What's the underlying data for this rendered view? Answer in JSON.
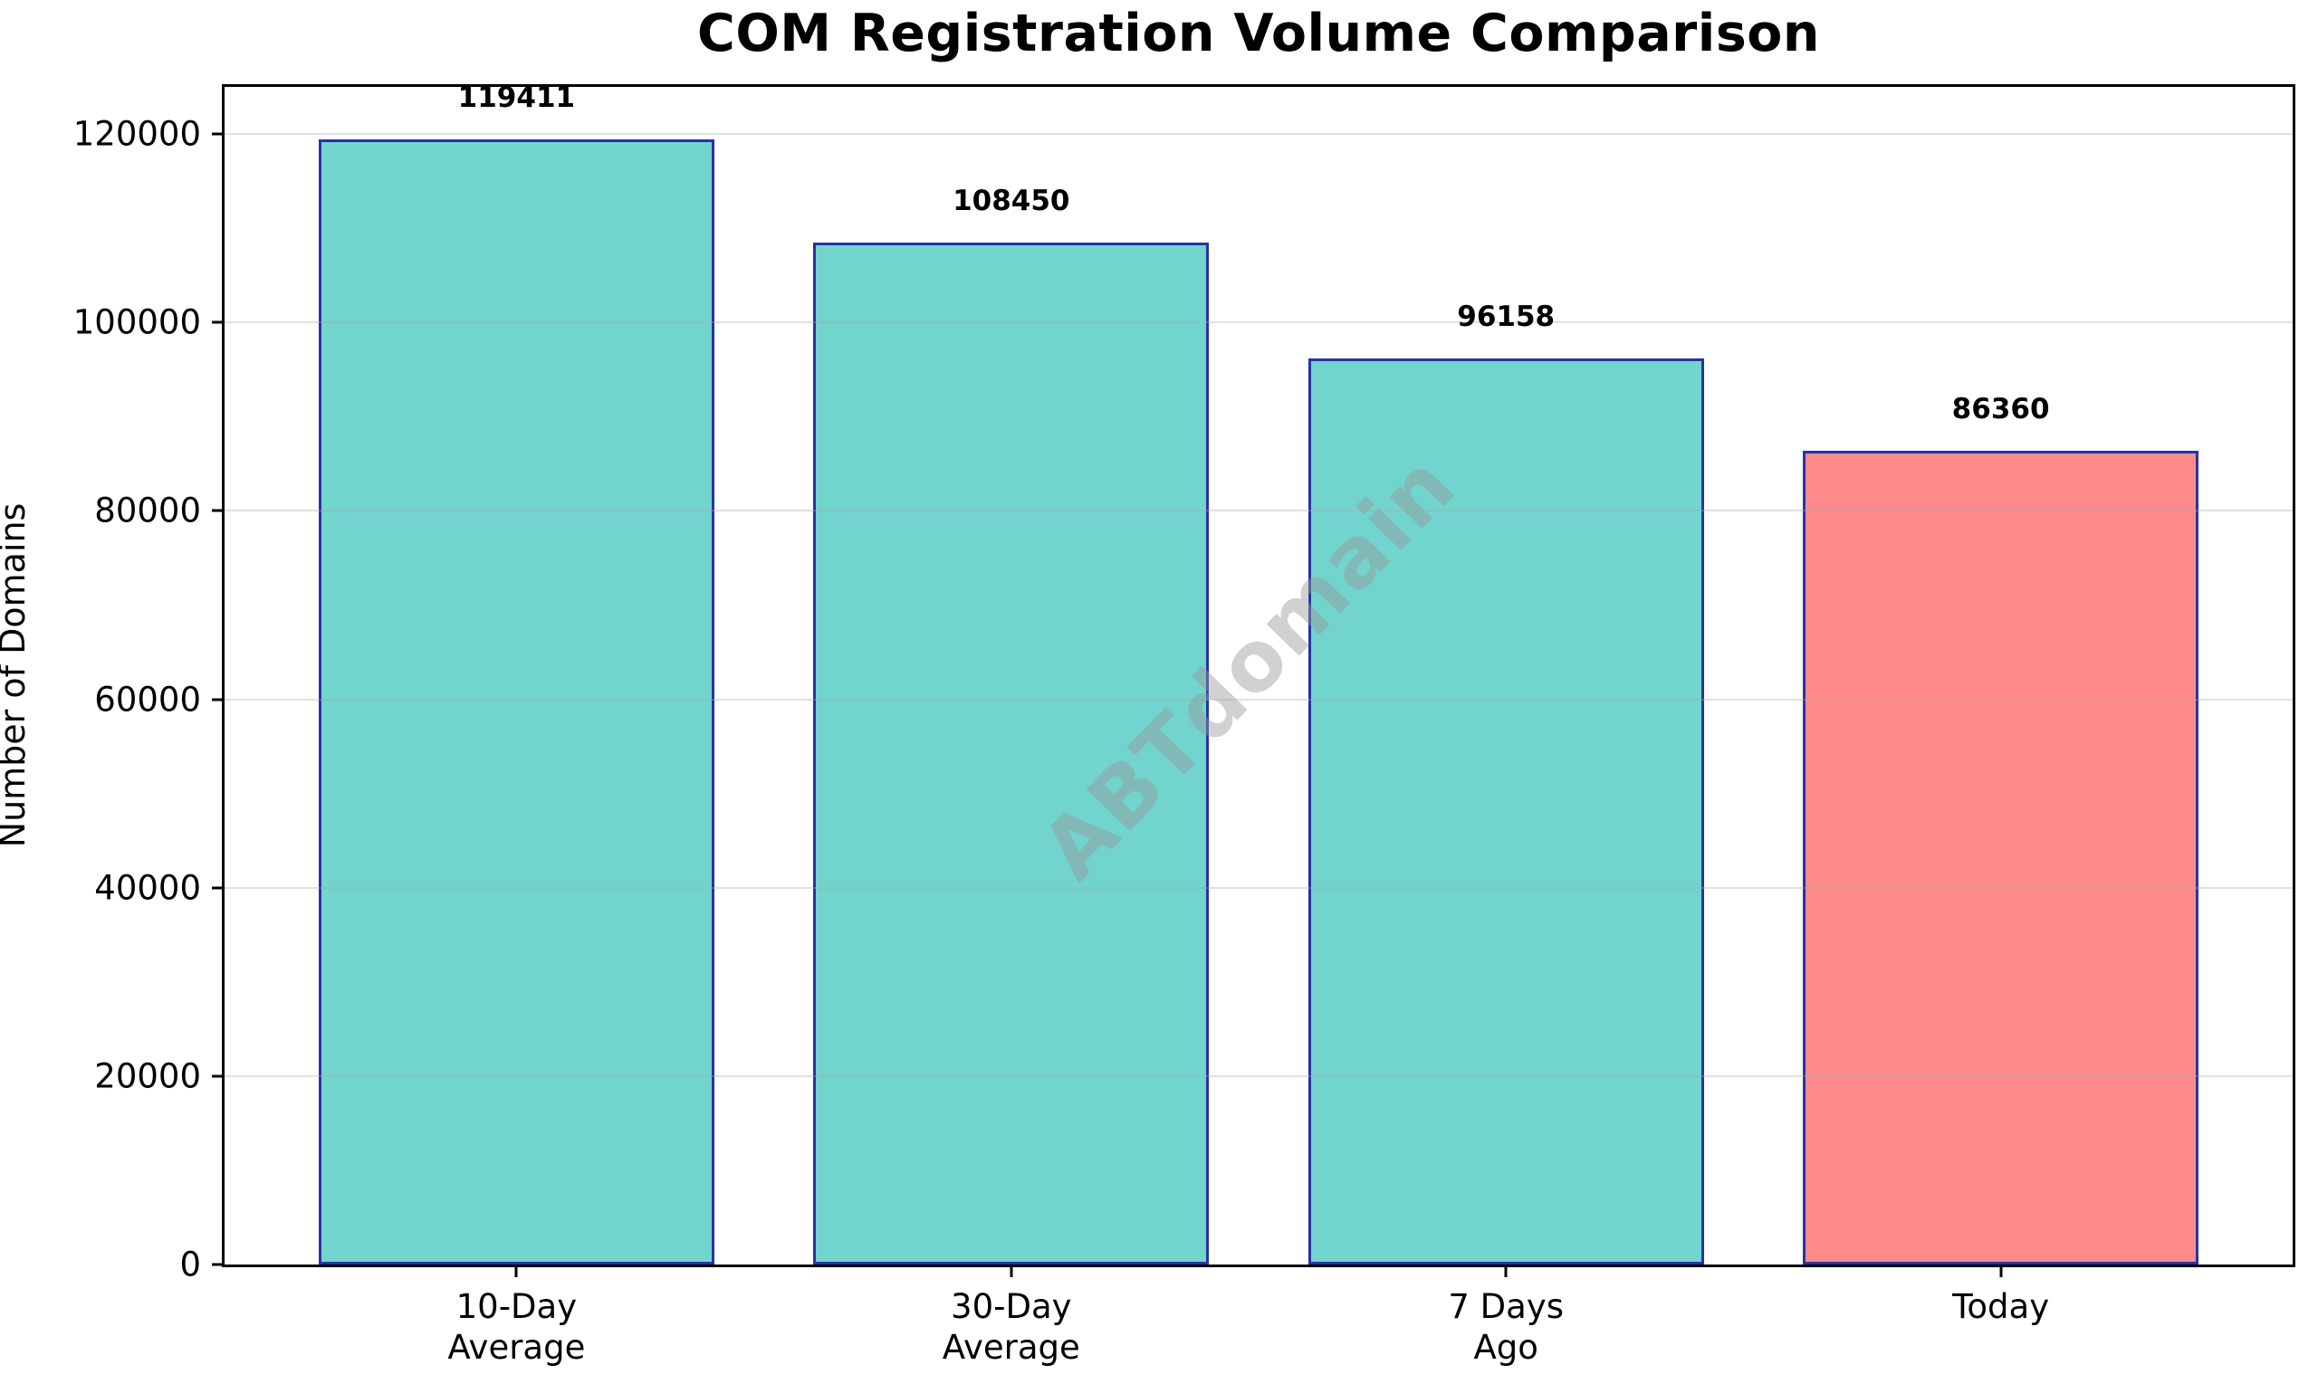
{
  "title": "COM Registration Volume Comparison",
  "watermark_text": "ABTdomain",
  "chart_data": {
    "type": "bar",
    "title": "COM Registration Volume Comparison",
    "categories": [
      "10-Day\nAverage",
      "30-Day\nAverage",
      "7 Days\nAgo",
      "Today"
    ],
    "values": [
      119411,
      108450,
      96158,
      86360
    ],
    "value_labels": [
      "119411",
      "108450",
      "96158",
      "86360"
    ],
    "bar_colors": [
      "#71D4CD",
      "#71D4CD",
      "#71D4CD",
      "#FF8A8A"
    ],
    "bar_edge_color": "#2733A3",
    "xlabel": "",
    "ylabel": "Number of Domains",
    "ylim": [
      0,
      125000
    ],
    "yticks": [
      0,
      20000,
      40000,
      60000,
      80000,
      100000,
      120000
    ],
    "grid": true,
    "grid_color": "#aaaaaa",
    "legend": "none",
    "watermark": "ABTdomain",
    "background": "#ffffff"
  }
}
